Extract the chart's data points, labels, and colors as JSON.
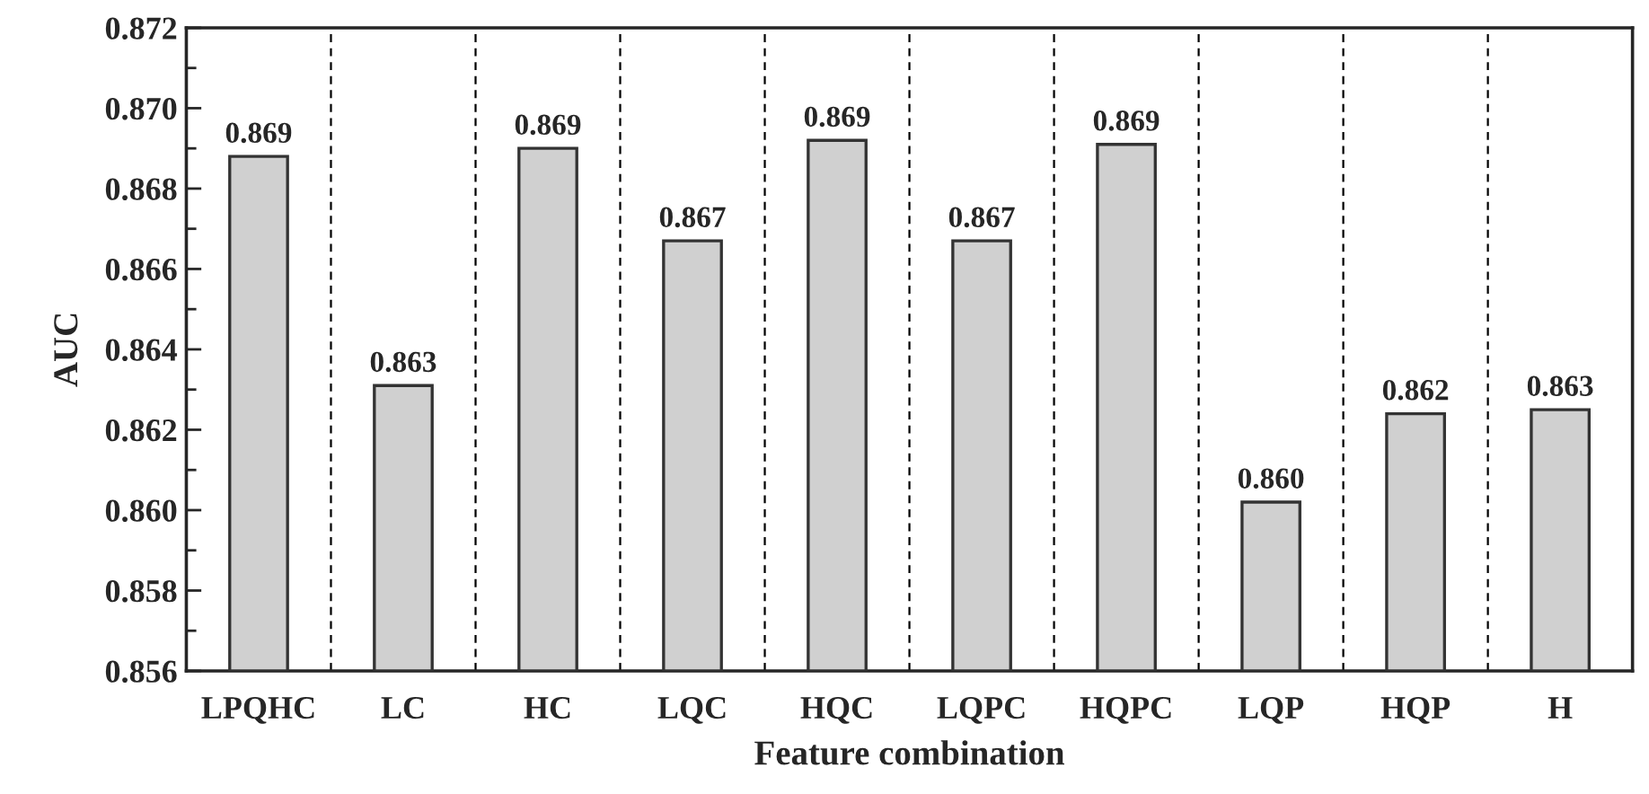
{
  "chart_data": {
    "type": "bar",
    "xlabel": "Feature combination",
    "ylabel": "AUC",
    "categories": [
      "LPQHC",
      "LC",
      "HC",
      "LQC",
      "HQC",
      "LQPC",
      "HQPC",
      "LQP",
      "HQP",
      "H"
    ],
    "values": [
      0.8688,
      0.8631,
      0.869,
      0.8667,
      0.8692,
      0.8667,
      0.8691,
      0.8602,
      0.8624,
      0.8625
    ],
    "value_labels": [
      "0.869",
      "0.863",
      "0.869",
      "0.867",
      "0.869",
      "0.867",
      "0.869",
      "0.860",
      "0.862",
      "0.863"
    ],
    "color": "#d0d0d0",
    "ylim": [
      0.856,
      0.872
    ],
    "yticks": [
      {
        "value": 0.856,
        "label": "0.856"
      },
      {
        "value": 0.858,
        "label": "0.858"
      },
      {
        "value": 0.86,
        "label": "0.860"
      },
      {
        "value": 0.862,
        "label": "0.862"
      },
      {
        "value": 0.864,
        "label": "0.864"
      },
      {
        "value": 0.866,
        "label": "0.866"
      },
      {
        "value": 0.868,
        "label": "0.868"
      },
      {
        "value": 0.87,
        "label": "0.870"
      },
      {
        "value": 0.872,
        "label": "0.872"
      }
    ],
    "grid": "x",
    "legend": false
  }
}
